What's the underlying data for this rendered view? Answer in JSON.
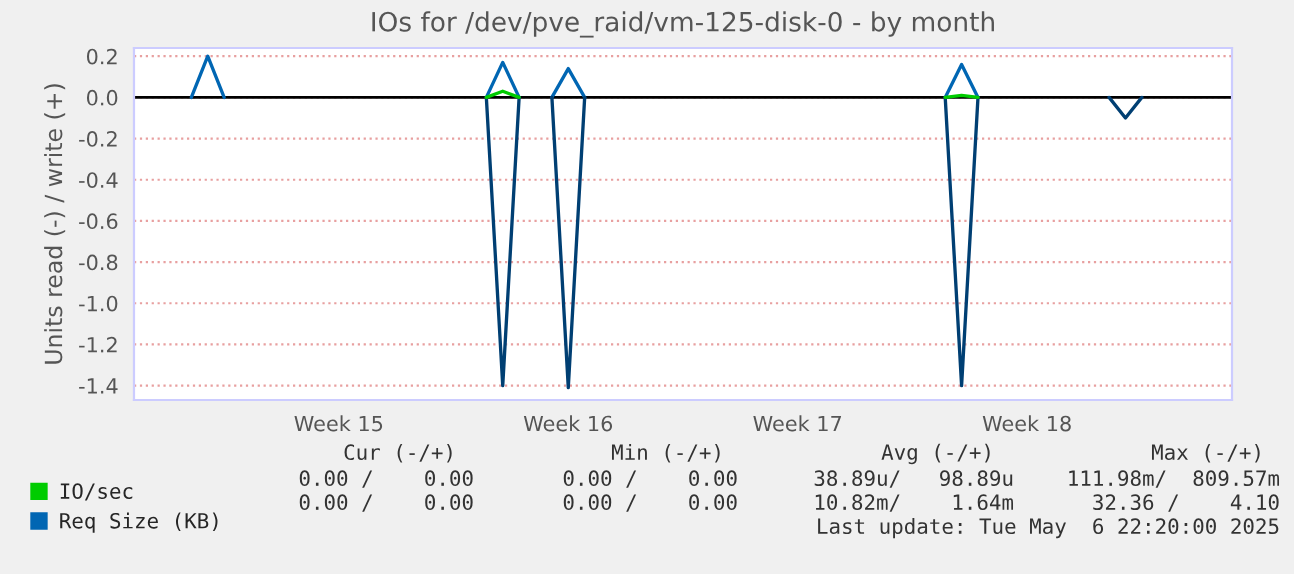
{
  "chart_data": {
    "type": "line",
    "title": "IOs for /dev/pve_raid/vm-125-disk-0 - by month",
    "ylabel": "Units read (-) / write (+)",
    "categories": [
      null,
      null,
      null,
      null,
      null,
      null,
      null,
      null,
      null,
      null,
      null,
      null,
      "Week 15",
      null,
      null,
      null,
      null,
      null,
      null,
      null,
      null,
      null,
      null,
      null,
      null,
      null,
      "Week 16",
      null,
      null,
      null,
      null,
      null,
      null,
      null,
      null,
      null,
      null,
      null,
      null,
      null,
      "Week 17",
      null,
      null,
      null,
      null,
      null,
      null,
      null,
      null,
      null,
      null,
      null,
      null,
      null,
      "Week 18",
      null,
      null,
      null,
      null,
      null,
      null,
      null,
      null,
      null,
      null,
      null,
      null
    ],
    "series": [
      {
        "name": "Req Size (KB)",
        "color": "#0066b3",
        "values": [
          null,
          null,
          null,
          0,
          0.2,
          0,
          null,
          null,
          null,
          null,
          null,
          null,
          null,
          null,
          null,
          null,
          null,
          null,
          null,
          null,
          null,
          0,
          0.17,
          0,
          null,
          0,
          0.14,
          0,
          null,
          null,
          null,
          null,
          null,
          null,
          null,
          null,
          null,
          null,
          null,
          null,
          null,
          null,
          null,
          null,
          null,
          null,
          null,
          null,
          null,
          0,
          0.16,
          0,
          null,
          null,
          null,
          null,
          null,
          null,
          null,
          null,
          null,
          null,
          null,
          null,
          null,
          null,
          null
        ]
      },
      {
        "color": "#003f73",
        "values": [
          null,
          null,
          null,
          null,
          null,
          null,
          null,
          null,
          null,
          null,
          null,
          null,
          null,
          null,
          null,
          null,
          null,
          null,
          null,
          null,
          null,
          0,
          -1.4,
          0,
          null,
          0,
          -1.41,
          0,
          null,
          null,
          null,
          null,
          null,
          null,
          null,
          null,
          null,
          null,
          null,
          null,
          null,
          null,
          null,
          null,
          null,
          null,
          null,
          null,
          null,
          0,
          -1.4,
          0,
          null,
          null,
          null,
          null,
          null,
          null,
          null,
          0,
          -0.1,
          0,
          null,
          null,
          null,
          null,
          null
        ]
      },
      {
        "name": "IO/sec",
        "color": "#00cc00",
        "values": [
          null,
          null,
          null,
          null,
          null,
          null,
          null,
          null,
          null,
          null,
          null,
          null,
          null,
          null,
          null,
          null,
          null,
          null,
          null,
          null,
          null,
          0,
          0.03,
          0,
          null,
          null,
          null,
          null,
          null,
          null,
          null,
          null,
          null,
          null,
          null,
          null,
          null,
          null,
          null,
          null,
          null,
          null,
          null,
          null,
          null,
          null,
          null,
          null,
          null,
          0,
          0.01,
          0,
          null,
          null,
          null,
          null,
          null,
          null,
          null,
          null,
          null,
          null,
          null,
          null,
          null,
          null,
          null
        ]
      }
    ],
    "ylim": [
      -1.47,
      0.24
    ],
    "yticks": [
      0.2,
      {
        "value": 0,
        "label": "0.0"
      },
      -0.2,
      -0.4,
      -0.6,
      -0.8,
      {
        "value": -1,
        "label": "-1.0"
      },
      -1.2,
      -1.4
    ],
    "ref_lines": [
      {
        "axis": "y",
        "value": 0,
        "color": "#000000"
      }
    ],
    "grid": "y",
    "legend": "bottom left",
    "annotations": [
      "Cur (-/+)",
      "Min (-/+)",
      "Avg (-/+)",
      "Max (-/+)",
      "0.00 /    0.00",
      "0.00 /    0.00",
      "38.89u/   98.89u",
      "111.98m/  809.57m",
      "0.00 /    0.00",
      "0.00 /    0.00",
      "10.82m/    1.64m",
      "32.36 /    4.10",
      "Last update: Tue May  6 22:20:00 2025"
    ]
  }
}
